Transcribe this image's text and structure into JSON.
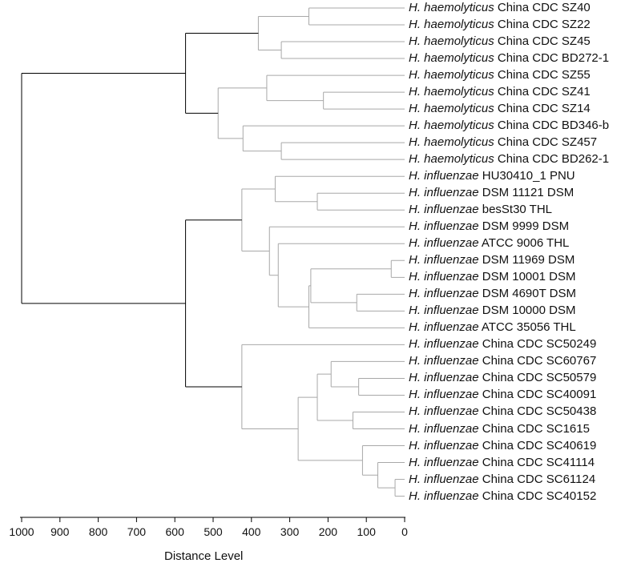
{
  "axis": {
    "title": "Distance Level",
    "ticks": [
      1000,
      900,
      800,
      700,
      600,
      500,
      400,
      300,
      200,
      100,
      0
    ],
    "range": [
      1000,
      0
    ]
  },
  "leaves": [
    {
      "species": "H. haemolyticus",
      "strain": "China CDC SZ40"
    },
    {
      "species": "H. haemolyticus",
      "strain": "China CDC SZ22"
    },
    {
      "species": "H. haemolyticus",
      "strain": "China CDC SZ45"
    },
    {
      "species": "H. haemolyticus",
      "strain": "China CDC BD272-1"
    },
    {
      "species": "H. haemolyticus",
      "strain": "China CDC SZ55"
    },
    {
      "species": "H. haemolyticus",
      "strain": "China CDC SZ41"
    },
    {
      "species": "H. haemolyticus",
      "strain": "China CDC SZ14"
    },
    {
      "species": "H. haemolyticus",
      "strain": "China CDC BD346-b"
    },
    {
      "species": "H. haemolyticus",
      "strain": "China CDC SZ457"
    },
    {
      "species": "H. haemolyticus",
      "strain": "China CDC BD262-1"
    },
    {
      "species": "H. influenzae",
      "strain": "HU30410_1 PNU"
    },
    {
      "species": "H. influenzae",
      "strain": "DSM 11121 DSM"
    },
    {
      "species": "H. influenzae",
      "strain": "besSt30 THL"
    },
    {
      "species": "H. influenzae",
      "strain": "DSM 9999 DSM"
    },
    {
      "species": "H. influenzae",
      "strain": "ATCC 9006 THL"
    },
    {
      "species": "H. influenzae",
      "strain": "DSM 11969 DSM"
    },
    {
      "species": "H. influenzae",
      "strain": "DSM 10001 DSM"
    },
    {
      "species": "H. influenzae",
      "strain": "DSM 4690T DSM"
    },
    {
      "species": "H. influenzae",
      "strain": "DSM 10000 DSM"
    },
    {
      "species": "H. influenzae",
      "strain": "ATCC 35056 THL"
    },
    {
      "species": "H. influenzae",
      "strain": "China CDC SC50249"
    },
    {
      "species": "H. influenzae",
      "strain": "China CDC SC60767"
    },
    {
      "species": "H. influenzae",
      "strain": "China CDC SC50579"
    },
    {
      "species": "H. influenzae",
      "strain": "China CDC SC40091"
    },
    {
      "species": "H. influenzae",
      "strain": "China CDC SC50438"
    },
    {
      "species": "H. influenzae",
      "strain": "China CDC SC1615"
    },
    {
      "species": "H. influenzae",
      "strain": "China CDC SC40619"
    },
    {
      "species": "H. influenzae",
      "strain": "China CDC SC41114"
    },
    {
      "species": "H. influenzae",
      "strain": "China CDC SC61124"
    },
    {
      "species": "H. influenzae",
      "strain": "China CDC SC40152"
    }
  ],
  "tree": {
    "d": 1000,
    "children": [
      {
        "d": 572,
        "children": [
          {
            "d": 382,
            "children": [
              {
                "d": 250,
                "children": [
                  {
                    "leaf": 0
                  },
                  {
                    "leaf": 1
                  }
                ]
              },
              {
                "d": 322,
                "children": [
                  {
                    "leaf": 2
                  },
                  {
                    "leaf": 3
                  }
                ]
              }
            ]
          },
          {
            "d": 487,
            "children": [
              {
                "d": 360,
                "children": [
                  {
                    "leaf": 4
                  },
                  {
                    "d": 212,
                    "children": [
                      {
                        "leaf": 5
                      },
                      {
                        "leaf": 6
                      }
                    ]
                  }
                ]
              },
              {
                "d": 422,
                "children": [
                  {
                    "leaf": 7
                  },
                  {
                    "d": 322,
                    "children": [
                      {
                        "leaf": 8
                      },
                      {
                        "leaf": 9
                      }
                    ]
                  }
                ]
              }
            ]
          }
        ]
      },
      {
        "d": 572,
        "children": [
          {
            "d": 425,
            "children": [
              {
                "d": 338,
                "children": [
                  {
                    "leaf": 10
                  },
                  {
                    "d": 228,
                    "children": [
                      {
                        "leaf": 11
                      },
                      {
                        "leaf": 12
                      }
                    ]
                  }
                ]
              },
              {
                "d": 353,
                "children": [
                  {
                    "leaf": 13
                  },
                  {
                    "d": 330,
                    "children": [
                      {
                        "leaf": 14
                      },
                      {
                        "d": 250,
                        "children": [
                          {
                            "d": 245,
                            "children": [
                              {
                                "d": 35,
                                "children": [
                                  {
                                    "leaf": 15
                                  },
                                  {
                                    "leaf": 16
                                  }
                                ]
                              },
                              {
                                "d": 125,
                                "children": [
                                  {
                                    "leaf": 17
                                  },
                                  {
                                    "leaf": 18
                                  }
                                ]
                              }
                            ]
                          },
                          {
                            "leaf": 19
                          }
                        ]
                      }
                    ]
                  }
                ]
              }
            ]
          },
          {
            "d": 425,
            "children": [
              {
                "leaf": 20
              },
              {
                "d": 278,
                "children": [
                  {
                    "d": 228,
                    "children": [
                      {
                        "d": 192,
                        "children": [
                          {
                            "leaf": 21
                          },
                          {
                            "d": 120,
                            "children": [
                              {
                                "leaf": 22
                              },
                              {
                                "leaf": 23
                              }
                            ]
                          }
                        ]
                      },
                      {
                        "d": 135,
                        "children": [
                          {
                            "leaf": 24
                          },
                          {
                            "leaf": 25
                          }
                        ]
                      }
                    ]
                  },
                  {
                    "d": 110,
                    "children": [
                      {
                        "leaf": 26
                      },
                      {
                        "d": 70,
                        "children": [
                          {
                            "leaf": 27
                          },
                          {
                            "d": 25,
                            "children": [
                              {
                                "leaf": 28
                              },
                              {
                                "leaf": 29
                              }
                            ]
                          }
                        ]
                      }
                    ]
                  }
                ]
              }
            ]
          }
        ]
      }
    ]
  },
  "colors": {
    "root_branch": "#000000",
    "branch": "#a8a8a8",
    "axis": "#000000"
  }
}
